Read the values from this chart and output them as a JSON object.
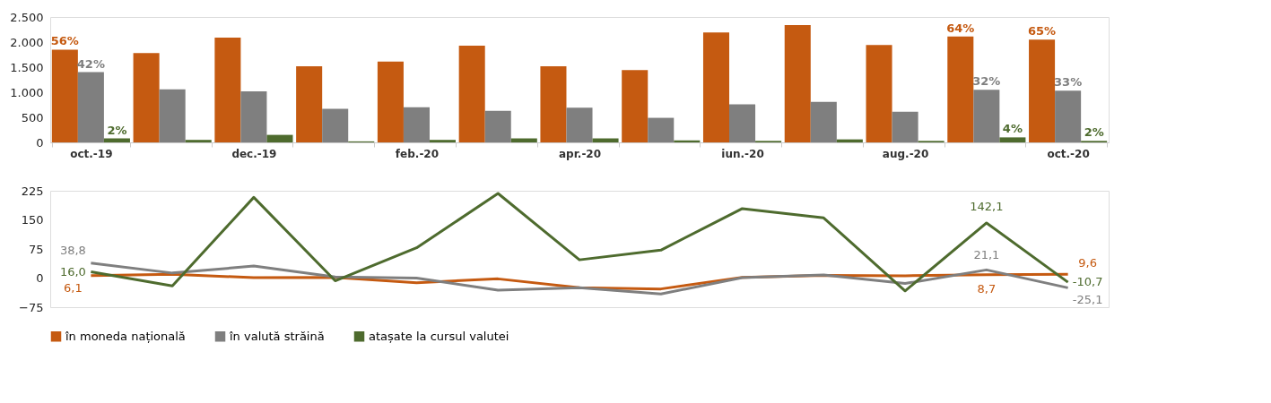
{
  "chart_data": [
    {
      "type": "bar",
      "categories": [
        "oct.-19",
        null,
        "dec.-19",
        null,
        "feb.-20",
        null,
        "apr.-20",
        null,
        "iun.-20",
        null,
        "aug.-20",
        null,
        "oct.-20"
      ],
      "series": [
        {
          "name": "în moneda națională",
          "color": "#c55a11",
          "values": [
            1850,
            1780,
            2090,
            1520,
            1610,
            1930,
            1520,
            1440,
            2190,
            2340,
            1940,
            2110,
            2050
          ]
        },
        {
          "name": "în valută străină",
          "color": "#7f7f7f",
          "values": [
            1400,
            1060,
            1020,
            670,
            700,
            630,
            690,
            490,
            760,
            810,
            610,
            1050,
            1030
          ]
        },
        {
          "name": "atașate la cursul valutei",
          "color": "#4e6b2e",
          "values": [
            80,
            50,
            150,
            20,
            50,
            80,
            80,
            40,
            30,
            60,
            30,
            100,
            30
          ]
        }
      ],
      "annotations": [
        "56%",
        {
          "text": "42%",
          "x": "oct.-19",
          "y": 1400
        },
        {
          "text": "2%",
          "x": "oct.-19",
          "y": 80
        },
        {
          "text": "64%",
          "y": 2110
        },
        {
          "text": "32%",
          "y": 1050
        },
        {
          "text": "4%",
          "y": 100
        },
        "65%",
        {
          "text": "33%",
          "x": "oct.-20",
          "y": 1030
        },
        {
          "text": "2%",
          "x": "oct.-20",
          "y": 30
        }
      ],
      "ylim": [
        0,
        2500
      ],
      "yticks": [
        0,
        500,
        {
          "value": 1000,
          "label": "1.000"
        },
        {
          "value": 1500,
          "label": "1.500"
        },
        {
          "value": 2000,
          "label": "2.000"
        },
        {
          "value": 2500,
          "label": "2.500"
        }
      ],
      "grid": false,
      "legend": "bottom"
    },
    {
      "type": "line",
      "categories": [
        null,
        null,
        null,
        null,
        null,
        null,
        null,
        null,
        null,
        null,
        null,
        null,
        null
      ],
      "series": [
        {
          "name": "în moneda națională",
          "color": "#c55a11",
          "values": [
            6.1,
            10,
            1,
            2,
            -12,
            -2,
            -25,
            -28,
            2,
            7,
            6,
            8.7,
            9.6
          ],
          "value_labels": [
            "6,1",
            null,
            null,
            null,
            null,
            null,
            null,
            null,
            null,
            null,
            null,
            "8,7",
            "9,6"
          ]
        },
        {
          "name": "în valută străină",
          "color": "#7f7f7f",
          "values": [
            38.8,
            13,
            31,
            3,
            0,
            -31,
            -25,
            -41,
            1,
            8,
            -14,
            21.1,
            -25.1
          ],
          "value_labels": [
            "38,8",
            null,
            null,
            null,
            null,
            null,
            null,
            null,
            null,
            null,
            null,
            "21,1",
            "-25,1"
          ]
        },
        {
          "name": "atașate la cursul valutei",
          "color": "#4e6b2e",
          "values": [
            16.0,
            -20,
            208,
            -7,
            78,
            218,
            47,
            72,
            179,
            155,
            -33,
            142.1,
            -10.7
          ],
          "value_labels": [
            "16,0",
            null,
            null,
            null,
            null,
            null,
            null,
            null,
            null,
            null,
            null,
            "142,1",
            "-10,7"
          ]
        }
      ],
      "ylim": [
        -75,
        225
      ],
      "yticks": [
        -75,
        0,
        75,
        150,
        225
      ],
      "tick_labels": "y",
      "grid": false,
      "legend": "bottom",
      "marker": "none",
      "line_style": "solid"
    }
  ]
}
